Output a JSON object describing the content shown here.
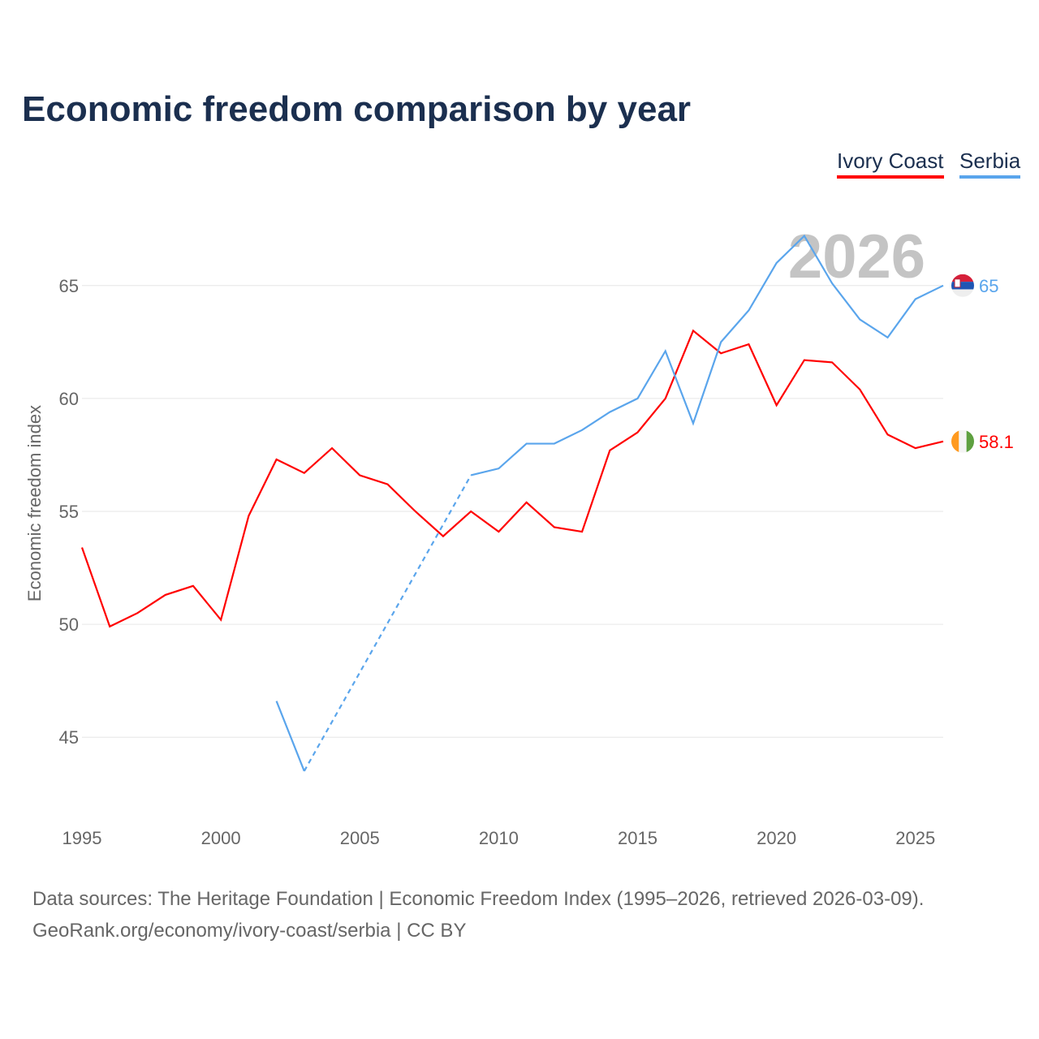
{
  "chart_data": {
    "type": "line",
    "title": "Economic freedom comparison by year",
    "xlabel": "",
    "ylabel": "Economic freedom index",
    "xlim": [
      1995,
      2026
    ],
    "ylim": [
      41.7,
      68.3
    ],
    "x_ticks": [
      1995,
      2000,
      2005,
      2010,
      2015,
      2020,
      2025
    ],
    "y_ticks": [
      45,
      50,
      55,
      60,
      65
    ],
    "grid": true,
    "legend_position": "top-right",
    "year_watermark": "2026",
    "series": [
      {
        "name": "Ivory Coast",
        "color": "#ff0000",
        "end_label": "58.1",
        "flag": "ivory-coast-flag",
        "x": [
          1995,
          1996,
          1997,
          1998,
          1999,
          2000,
          2001,
          2002,
          2003,
          2004,
          2005,
          2006,
          2007,
          2008,
          2009,
          2010,
          2011,
          2012,
          2013,
          2014,
          2015,
          2016,
          2017,
          2018,
          2019,
          2020,
          2021,
          2022,
          2023,
          2024,
          2025,
          2026
        ],
        "values": [
          53.4,
          49.9,
          50.5,
          51.3,
          51.7,
          50.2,
          54.8,
          57.3,
          56.7,
          57.8,
          56.6,
          56.2,
          55.0,
          53.9,
          55.0,
          54.1,
          55.4,
          54.3,
          54.1,
          57.7,
          58.5,
          60.0,
          63.0,
          62.0,
          62.4,
          59.7,
          61.7,
          61.6,
          60.4,
          58.4,
          57.8,
          58.1
        ]
      },
      {
        "name": "Serbia",
        "color": "#5aa5ec",
        "end_label": "65",
        "flag": "serbia-flag",
        "x": [
          2002,
          2003,
          2004,
          2005,
          2006,
          2007,
          2008,
          2009,
          2010,
          2011,
          2012,
          2013,
          2014,
          2015,
          2016,
          2017,
          2018,
          2019,
          2020,
          2021,
          2022,
          2023,
          2024,
          2025,
          2026
        ],
        "values": [
          46.6,
          43.5,
          null,
          null,
          null,
          null,
          null,
          56.6,
          56.9,
          58.0,
          58.0,
          58.6,
          59.4,
          60.0,
          62.1,
          58.9,
          62.5,
          63.9,
          66.0,
          67.2,
          65.1,
          63.5,
          62.7,
          64.4,
          65.0
        ]
      }
    ]
  },
  "footer": {
    "line1": "Data sources: The Heritage Foundation | Economic Freedom Index (1995–2026, retrieved 2026-03-09).",
    "line2": "GeoRank.org/economy/ivory-coast/serbia | CC BY"
  }
}
